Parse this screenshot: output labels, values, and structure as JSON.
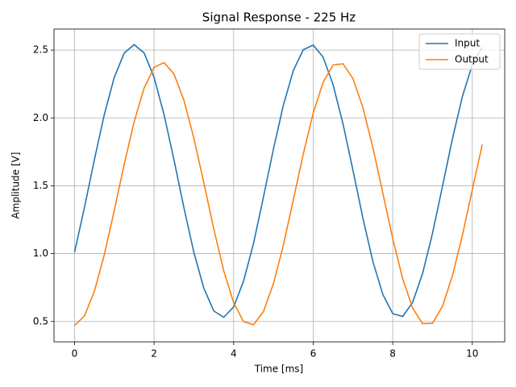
{
  "chart_data": {
    "type": "line",
    "title": "Signal Response - 225 Hz",
    "x_label": "Time [ms]",
    "y_label": "Amplitude [V]",
    "x": [
      0,
      0.25,
      0.5,
      0.75,
      1,
      1.25,
      1.5,
      1.75,
      2,
      2.25,
      2.5,
      2.75,
      3,
      3.25,
      3.5,
      3.75,
      4,
      4.25,
      4.5,
      4.75,
      5,
      5.25,
      5.5,
      5.75,
      6,
      6.25,
      6.5,
      6.75,
      7,
      7.25,
      7.5,
      7.75,
      8,
      8.25,
      8.5,
      8.75,
      9,
      9.25,
      9.5,
      9.75,
      10,
      10.25
    ],
    "series": [
      {
        "name": "Input",
        "color": "#1f77b4",
        "values": [
          1.01,
          1.339,
          1.692,
          2.026,
          2.299,
          2.478,
          2.54,
          2.478,
          2.299,
          2.026,
          1.692,
          1.339,
          1.01,
          0.746,
          0.578,
          0.531,
          0.607,
          0.798,
          1.075,
          1.417,
          1.769,
          2.093,
          2.348,
          2.502,
          2.537,
          2.448,
          2.245,
          1.956,
          1.614,
          1.262,
          0.943,
          0.7,
          0.558,
          0.537,
          0.64,
          0.854,
          1.15,
          1.495,
          1.845,
          2.157,
          2.392,
          2.521
        ]
      },
      {
        "name": "Output",
        "color": "#ff7f0e",
        "values": [
          0.47,
          0.541,
          0.723,
          0.993,
          1.319,
          1.659,
          1.973,
          2.22,
          2.372,
          2.408,
          2.324,
          2.131,
          1.852,
          1.523,
          1.184,
          0.875,
          0.638,
          0.499,
          0.476,
          0.573,
          0.778,
          1.062,
          1.395,
          1.733,
          2.035,
          2.263,
          2.39,
          2.399,
          2.29,
          2.076,
          1.783,
          1.447,
          1.111,
          0.815,
          0.599,
          0.484,
          0.487,
          0.612,
          0.837,
          1.133,
          1.471,
          1.804
        ]
      }
    ],
    "xlim": [
      -0.515,
      10.815
    ],
    "ylim": [
      0.35,
      2.655
    ],
    "xticks": [
      0,
      2,
      4,
      6,
      8,
      10
    ],
    "yticks": [
      0.5,
      {
        "value": 1.0,
        "label": "1.0"
      },
      1.5,
      {
        "value": 2.0,
        "label": "2.0"
      },
      2.5
    ],
    "grid": true,
    "legend": "upper right"
  }
}
